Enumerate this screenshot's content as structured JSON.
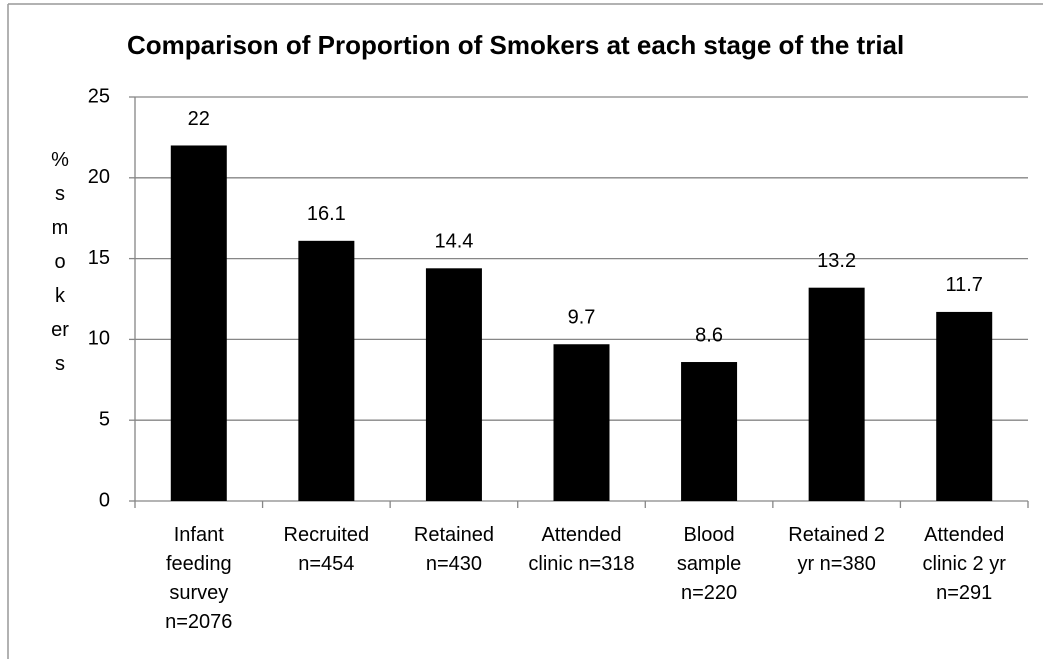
{
  "chart_data": {
    "type": "bar",
    "title": "Comparison of Proportion of Smokers at each stage of the trial",
    "y_label": "% smokers",
    "categories": [
      "Infant\nfeeding\nsurvey\nn=2076",
      "Recruited\nn=454",
      "Retained\nn=430",
      "Attended\nclinic n=318",
      "Blood\nsample\nn=220",
      "Retained 2\nyr n=380",
      "Attended\nclinic 2 yr\nn=291"
    ],
    "values": [
      22,
      16.1,
      14.4,
      9.7,
      8.6,
      13.2,
      11.7
    ],
    "color": "#000000",
    "ylim": [
      0,
      25
    ],
    "yticks": [
      0,
      5,
      10,
      15,
      20,
      25
    ],
    "grid": true
  }
}
